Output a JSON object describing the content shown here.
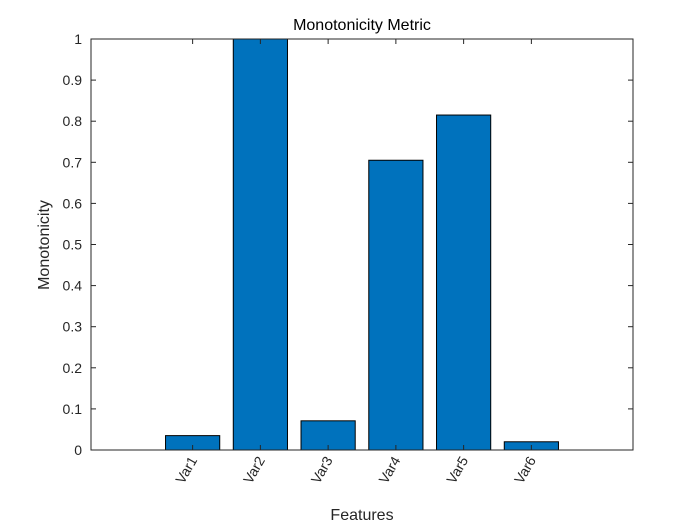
{
  "chart_data": {
    "type": "bar",
    "title": "Monotonicity Metric",
    "xlabel": "Features",
    "ylabel": "Monotonicity",
    "categories": [
      "Var1",
      "Var2",
      "Var3",
      "Var4",
      "Var5",
      "Var6"
    ],
    "values": [
      0.035,
      1.0,
      0.071,
      0.705,
      0.815,
      0.02
    ],
    "ylim": [
      0,
      1
    ],
    "yticks": [
      "0",
      "0.1",
      "0.2",
      "0.3",
      "0.4",
      "0.5",
      "0.6",
      "0.7",
      "0.8",
      "0.9",
      "1"
    ],
    "grid": false,
    "legend": "none",
    "colors": {
      "bar": "#0072BD",
      "bar_edge": "#000000",
      "axis": "#262626"
    }
  }
}
